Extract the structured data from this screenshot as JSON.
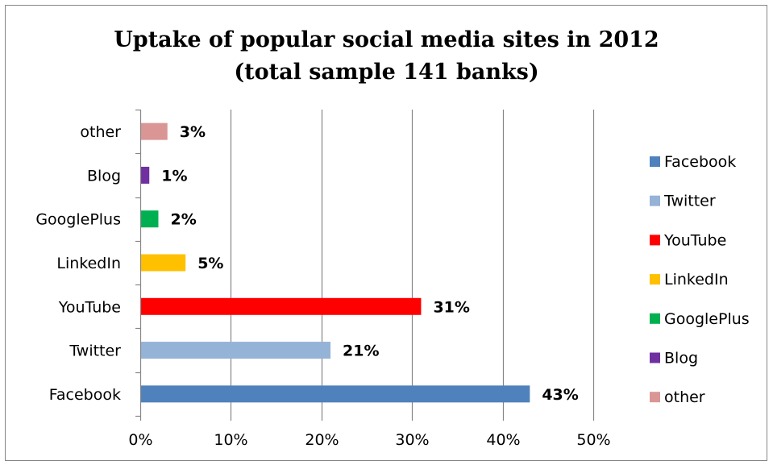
{
  "chart_data": {
    "type": "bar",
    "orientation": "horizontal",
    "title": "Uptake of popular social media sites in 2012",
    "subtitle": "(total sample 141 banks)",
    "categories": [
      "Facebook",
      "Twitter",
      "YouTube",
      "LinkedIn",
      "GooglePlus",
      "Blog",
      "other"
    ],
    "values": [
      43,
      21,
      31,
      5,
      2,
      1,
      3
    ],
    "data_labels": [
      "43%",
      "21%",
      "31%",
      "5%",
      "2%",
      "1%",
      "3%"
    ],
    "colors": [
      "#4f81bd",
      "#95b3d7",
      "#ff0000",
      "#ffc000",
      "#00b050",
      "#7030a0",
      "#da9694"
    ],
    "xlim": [
      0,
      50
    ],
    "x_ticks": [
      0,
      10,
      20,
      30,
      40,
      50
    ],
    "x_tick_labels": [
      "0%",
      "10%",
      "20%",
      "30%",
      "40%",
      "50%"
    ],
    "grid": "vertical",
    "legend": {
      "position": "right",
      "entries": [
        "Facebook",
        "Twitter",
        "YouTube",
        "LinkedIn",
        "GooglePlus",
        "Blog",
        "other"
      ]
    }
  }
}
